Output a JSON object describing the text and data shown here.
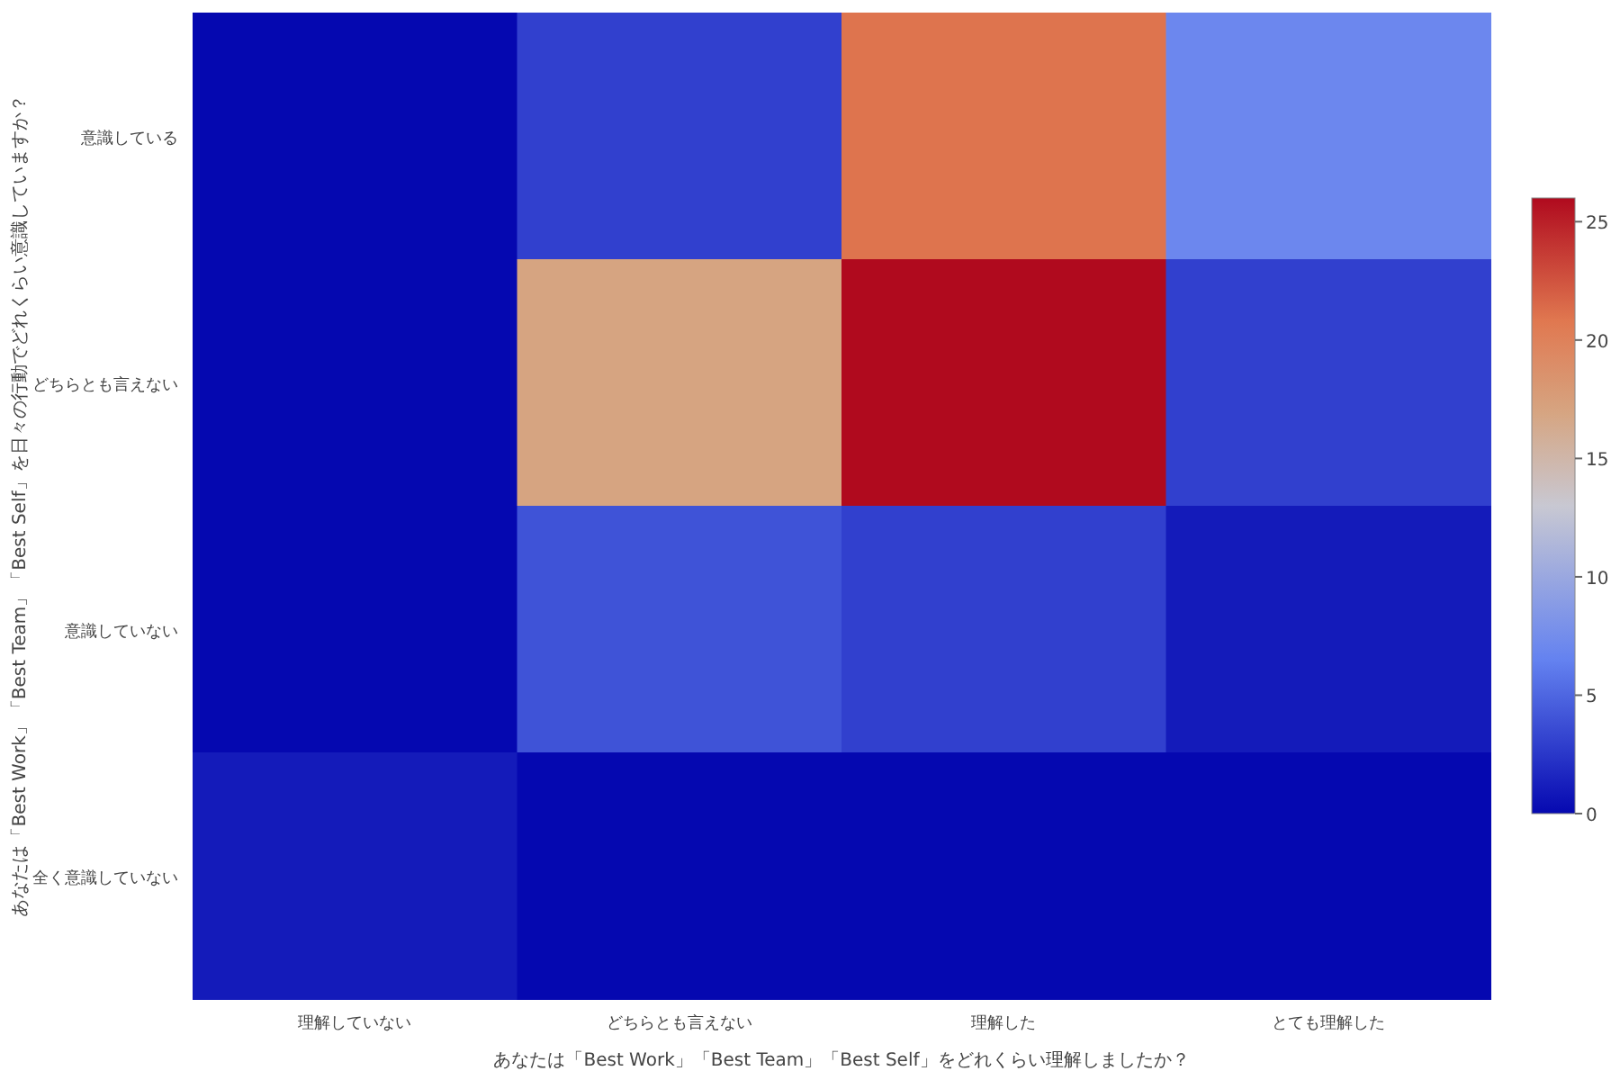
{
  "chart_data": {
    "type": "heatmap",
    "xlabel": "あなたは「Best Work」「Best Team」「Best Self」をどれくらい理解しましたか？",
    "ylabel": "あなたは「Best Work」「Best Team」「Best Self」を日々の行動でどれくらい意識していますか？",
    "categories": [
      "理解していない",
      "どちらとも言えない",
      "理解した",
      "とても理解した"
    ],
    "y_categories": [
      "意識している",
      "どちらとも言えない",
      "意識していない",
      "全く意識していない"
    ],
    "cells": [
      [
        0,
        3,
        21,
        7
      ],
      [
        0,
        17,
        26,
        3
      ],
      [
        0,
        4,
        3,
        1
      ],
      [
        1,
        0,
        0,
        0
      ]
    ],
    "clim": [
      0,
      26
    ],
    "cticks": [
      0,
      5,
      10,
      15,
      20,
      25
    ]
  }
}
